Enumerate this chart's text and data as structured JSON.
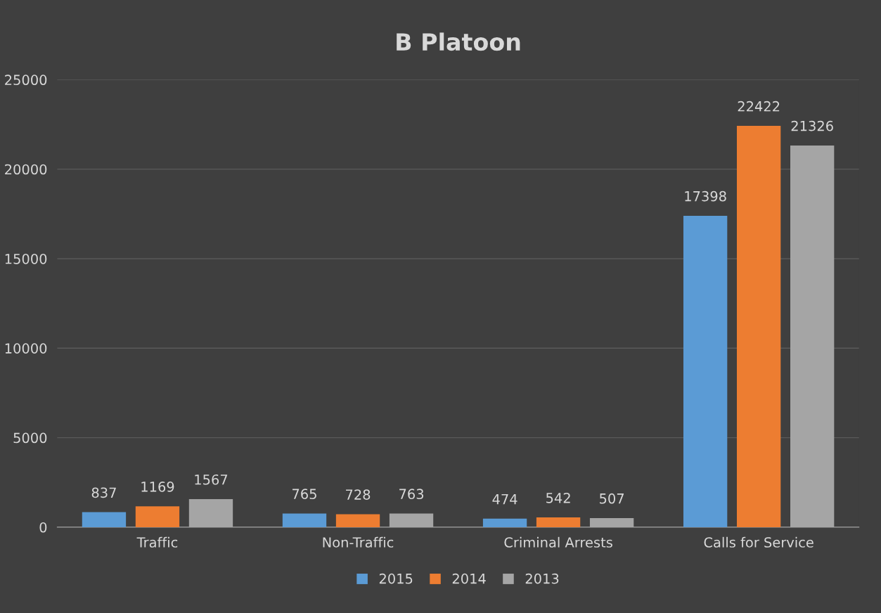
{
  "chart_data": {
    "type": "bar",
    "title": "B Platoon",
    "categories": [
      "Traffic",
      "Non-Traffic",
      "Criminal Arrests",
      "Calls for Service"
    ],
    "series": [
      {
        "name": "2015",
        "color": "#5b9bd5",
        "values": [
          837,
          765,
          474,
          17398
        ]
      },
      {
        "name": "2014",
        "color": "#ed7d31",
        "values": [
          1169,
          728,
          542,
          22422
        ]
      },
      {
        "name": "2013",
        "color": "#a5a5a5",
        "values": [
          1567,
          763,
          507,
          21326
        ]
      }
    ],
    "ylim": [
      0,
      25000
    ],
    "yticks": [
      0,
      5000,
      10000,
      15000,
      20000,
      25000
    ],
    "grid": "y",
    "legend": "bottom",
    "data_labels": true
  }
}
